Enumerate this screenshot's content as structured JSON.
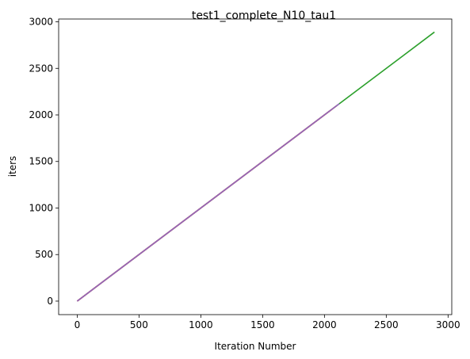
{
  "chart_data": {
    "type": "line",
    "title": "test1_complete_N10_tau1",
    "xlabel": "Iteration Number",
    "ylabel": "iters",
    "xlim": [
      -150,
      3030
    ],
    "ylim": [
      -145,
      3030
    ],
    "xticks": [
      0,
      500,
      1000,
      1500,
      2000,
      2500,
      3000
    ],
    "yticks": [
      0,
      500,
      1000,
      1500,
      2000,
      2500,
      3000
    ],
    "grid": false,
    "series": [
      {
        "color": "#2ca02c",
        "x": [
          0,
          2890
        ],
        "y": [
          0,
          2890
        ]
      },
      {
        "color": "#1f77b4",
        "x": [
          0,
          2050
        ],
        "y": [
          0,
          2050
        ]
      },
      {
        "color": "#ff7f0e",
        "x": [
          0,
          2060
        ],
        "y": [
          0,
          2060
        ]
      },
      {
        "color": "#d62728",
        "x": [
          0,
          2100
        ],
        "y": [
          0,
          2100
        ]
      },
      {
        "color": "#9467bd",
        "x": [
          0,
          2120
        ],
        "y": [
          0,
          2120
        ]
      }
    ]
  }
}
